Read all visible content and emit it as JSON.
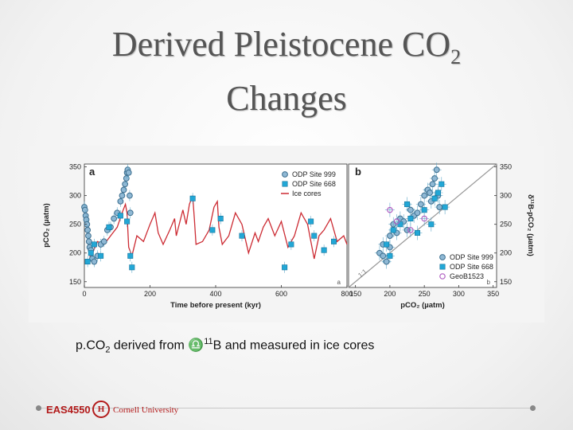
{
  "slide": {
    "title_line1": "Derived Pleistocene CO",
    "title_sub": "2",
    "title_line2": "Changes",
    "caption_pre": "p.CO",
    "caption_sub": "2",
    "caption_mid": " derived from ",
    "caption_symbol": "♎",
    "caption_sup": "11",
    "caption_post": "B and measured in ice cores",
    "footer_course": "EAS4550",
    "footer_university": "Cornell University",
    "footer_seal": "H"
  },
  "colors": {
    "ice": "#cc2b33",
    "odp999": "#8fb8d4",
    "odp668": "#22a7d6",
    "geo": "#b05fc2"
  },
  "chart_data": [
    {
      "type": "line",
      "panel_label": "a",
      "corner_label": "a",
      "xlabel": "Time before present (kyr)",
      "ylabel": "pCO₂ (µatm)",
      "xlim": [
        0,
        800
      ],
      "ylim": [
        140,
        355
      ],
      "xticks": [
        0,
        200,
        400,
        600,
        800
      ],
      "yticks": [
        150,
        200,
        250,
        300,
        350
      ],
      "legend_position": "top-right",
      "series": [
        {
          "name": "ODP Site 999",
          "kind": "scatter",
          "x": [
            0,
            2,
            4,
            6,
            8,
            10,
            12,
            14,
            16,
            20,
            24,
            30,
            40,
            50,
            60,
            70,
            80,
            90,
            100,
            110,
            115,
            120,
            124,
            128,
            130,
            132,
            135,
            138,
            140
          ],
          "y": [
            280,
            275,
            265,
            258,
            250,
            240,
            230,
            220,
            210,
            205,
            190,
            185,
            195,
            215,
            220,
            240,
            245,
            260,
            270,
            290,
            300,
            310,
            320,
            330,
            340,
            345,
            340,
            300,
            270
          ]
        },
        {
          "name": "ODP Site 668",
          "kind": "scatter",
          "x": [
            10,
            20,
            30,
            50,
            75,
            110,
            130,
            140,
            145,
            330,
            390,
            415,
            480,
            610,
            630,
            690,
            700,
            730,
            760
          ],
          "y": [
            185,
            200,
            215,
            195,
            245,
            265,
            255,
            195,
            175,
            295,
            240,
            260,
            230,
            175,
            215,
            255,
            230,
            205,
            220
          ]
        },
        {
          "name": "Ice cores",
          "kind": "line",
          "x": [
            0,
            10,
            18,
            25,
            40,
            60,
            80,
            100,
            115,
            125,
            130,
            135,
            145,
            160,
            180,
            200,
            215,
            225,
            240,
            260,
            275,
            280,
            300,
            310,
            320,
            330,
            335,
            340,
            360,
            380,
            395,
            405,
            410,
            420,
            440,
            460,
            480,
            500,
            520,
            530,
            545,
            560,
            580,
            600,
            620,
            640,
            660,
            680,
            700,
            715,
            730,
            750,
            770,
            790,
            800
          ],
          "y": [
            280,
            260,
            190,
            200,
            220,
            215,
            230,
            245,
            270,
            285,
            270,
            210,
            195,
            230,
            220,
            250,
            270,
            235,
            215,
            240,
            260,
            230,
            275,
            250,
            285,
            300,
            260,
            215,
            220,
            240,
            280,
            290,
            245,
            215,
            230,
            270,
            250,
            200,
            235,
            220,
            245,
            260,
            230,
            255,
            210,
            230,
            270,
            250,
            190,
            230,
            240,
            260,
            220,
            230,
            215
          ]
        }
      ]
    },
    {
      "type": "scatter",
      "panel_label": "b",
      "corner_label": "b",
      "one_to_one_label": "1:1",
      "xlabel": "pCO₂ (µatm)",
      "ylabel": "δ¹¹B-pCO₂ (µatm)",
      "xlim": [
        140,
        355
      ],
      "ylim": [
        140,
        355
      ],
      "xticks": [
        150,
        200,
        250,
        300,
        350
      ],
      "yticks": [
        150,
        200,
        250,
        300,
        350
      ],
      "legend_position": "bottom-right",
      "series": [
        {
          "name": "ODP Site 999",
          "kind": "scatter",
          "x": [
            185,
            190,
            195,
            200,
            205,
            215,
            225,
            230,
            235,
            245,
            250,
            255,
            260,
            262,
            265,
            268,
            270,
            272,
            190,
            200,
            210,
            220,
            240,
            258
          ],
          "y": [
            200,
            215,
            185,
            230,
            250,
            260,
            240,
            275,
            265,
            285,
            300,
            310,
            290,
            320,
            330,
            345,
            300,
            280,
            195,
            210,
            235,
            255,
            270,
            305
          ]
        },
        {
          "name": "ODP Site 668",
          "kind": "scatter",
          "x": [
            195,
            205,
            215,
            230,
            240,
            250,
            260,
            265,
            270,
            275,
            280,
            200,
            225
          ],
          "y": [
            215,
            240,
            250,
            260,
            235,
            275,
            250,
            295,
            305,
            320,
            280,
            195,
            285
          ]
        },
        {
          "name": "GeoB1523",
          "kind": "scatter",
          "x": [
            200,
            210,
            230,
            250
          ],
          "y": [
            275,
            255,
            240,
            260
          ]
        }
      ]
    }
  ]
}
